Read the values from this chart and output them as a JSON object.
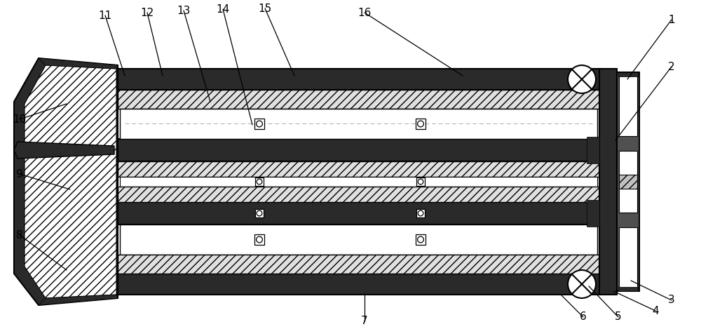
{
  "fig_width": 10.0,
  "fig_height": 4.69,
  "dpi": 100,
  "bg_color": "#ffffff",
  "dark_fc": "#2a2a2a",
  "hatch_fc": "#e0e0e0",
  "mid_hatch_fc": "#c8c8c8",
  "line_color": "#000000",
  "annotations": [
    [
      "1",
      958,
      28,
      895,
      113
    ],
    [
      "2",
      958,
      95,
      878,
      200
    ],
    [
      "3",
      958,
      428,
      900,
      400
    ],
    [
      "4",
      935,
      443,
      875,
      415
    ],
    [
      "5",
      882,
      452,
      840,
      408
    ],
    [
      "6",
      832,
      452,
      800,
      420
    ],
    [
      "7",
      520,
      458,
      520,
      418
    ],
    [
      "8",
      28,
      335,
      95,
      385
    ],
    [
      "9",
      28,
      248,
      100,
      270
    ],
    [
      "10",
      28,
      170,
      95,
      148
    ],
    [
      "11",
      150,
      22,
      178,
      108
    ],
    [
      "12",
      210,
      18,
      232,
      108
    ],
    [
      "13",
      262,
      15,
      300,
      145
    ],
    [
      "14",
      318,
      13,
      360,
      178
    ],
    [
      "15",
      378,
      12,
      420,
      108
    ],
    [
      "16",
      520,
      18,
      660,
      108
    ]
  ]
}
